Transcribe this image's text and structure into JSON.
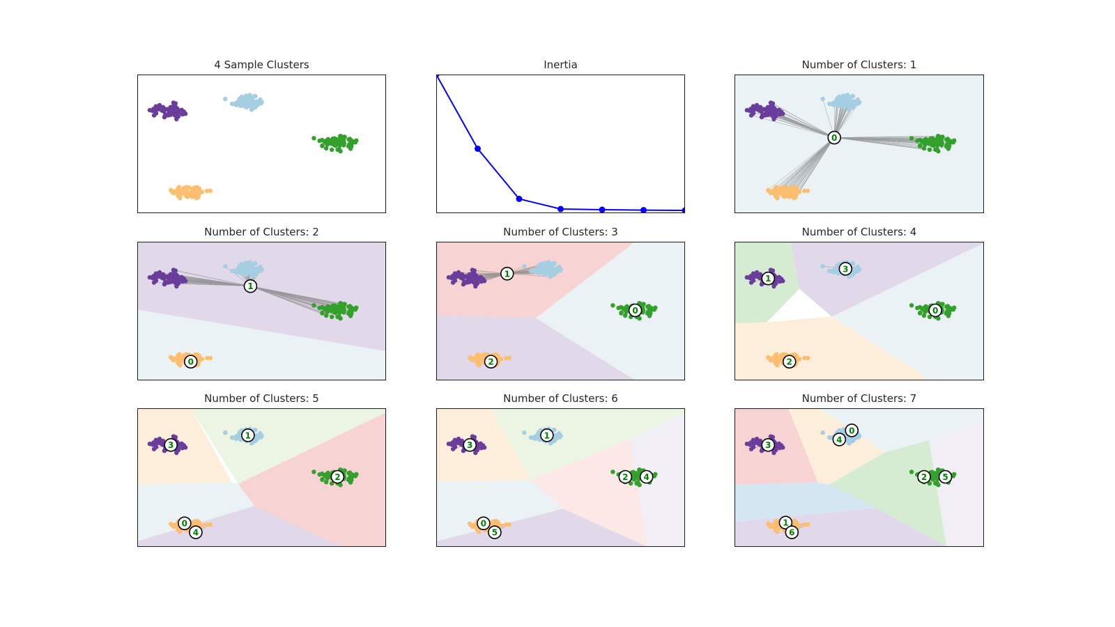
{
  "colors": {
    "blobs": [
      "#6a3d9a",
      "#a6cee3",
      "#33a02c",
      "#fdbf6f"
    ],
    "centroid_label": "#008000",
    "inertia_line": "#0000ff",
    "link_line": "#808080",
    "regions": [
      "#eaf2f6",
      "#e1d8ea",
      "#f7d3d3",
      "#fdeddb",
      "#ecf5e3",
      "#fde8e8",
      "#d4e6f1",
      "#d5ebd2",
      "#f2eef6"
    ]
  },
  "chart_data": [
    {
      "type": "scatter",
      "title": "4 Sample Clusters",
      "xlim": [
        0,
        100
      ],
      "ylim": [
        0,
        100
      ],
      "clusters": [
        {
          "name": "purple",
          "center": [
            12.5,
            74
          ],
          "spread": [
            6,
            4.5
          ],
          "count": 70
        },
        {
          "name": "light-blue",
          "center": [
            44.5,
            80.5
          ],
          "spread": [
            6,
            4.5
          ],
          "count": 70
        },
        {
          "name": "green",
          "center": [
            80,
            51
          ],
          "spread": [
            6,
            4.5
          ],
          "count": 70
        },
        {
          "name": "orange",
          "center": [
            20.5,
            15.5
          ],
          "spread": [
            6,
            4.5
          ],
          "count": 70
        }
      ],
      "centroids": []
    },
    {
      "type": "line",
      "title": "Inertia",
      "x": [
        1,
        2,
        3,
        4,
        5,
        6,
        7
      ],
      "y": [
        100,
        46.5,
        10.3,
        3.0,
        2.5,
        2.2,
        2.0
      ],
      "xlim": [
        1,
        7
      ],
      "ylim": [
        0,
        100
      ]
    },
    {
      "type": "scatter",
      "title": "Number of Clusters: 1",
      "regions": [
        {
          "color_index": 0,
          "polygon": [
            [
              0,
              0
            ],
            [
              100,
              0
            ],
            [
              100,
              100
            ],
            [
              0,
              100
            ]
          ]
        }
      ],
      "centroids": [
        {
          "label": "0",
          "pos": [
            40,
            54.5
          ],
          "members": [
            0,
            1,
            2,
            3
          ]
        }
      ]
    },
    {
      "type": "scatter",
      "title": "Number of Clusters: 2",
      "regions": [
        {
          "color_index": 1,
          "polygon": [
            [
              0,
              100
            ],
            [
              100,
              100
            ],
            [
              100,
              21
            ],
            [
              0,
              51
            ]
          ]
        },
        {
          "color_index": 0,
          "polygon": [
            [
              0,
              51
            ],
            [
              100,
              21
            ],
            [
              100,
              0
            ],
            [
              0,
              0
            ]
          ]
        }
      ],
      "centroids": [
        {
          "label": "0",
          "pos": [
            21.5,
            13.5
          ],
          "members": [
            3
          ]
        },
        {
          "label": "1",
          "pos": [
            45.5,
            68
          ],
          "members": [
            0,
            1,
            2
          ]
        }
      ]
    },
    {
      "type": "scatter",
      "title": "Number of Clusters: 3",
      "regions": [
        {
          "color_index": 2,
          "polygon": [
            [
              0,
              100
            ],
            [
              80,
              100
            ],
            [
              40,
              45
            ],
            [
              0,
              47
            ]
          ]
        },
        {
          "color_index": 0,
          "polygon": [
            [
              80,
              100
            ],
            [
              100,
              100
            ],
            [
              100,
              0
            ],
            [
              80,
              0
            ],
            [
              40,
              45
            ]
          ]
        },
        {
          "color_index": 1,
          "polygon": [
            [
              0,
              47
            ],
            [
              40,
              45
            ],
            [
              80,
              0
            ],
            [
              0,
              0
            ]
          ]
        }
      ],
      "centroids": [
        {
          "label": "0",
          "pos": [
            80,
            50.5
          ],
          "members": [
            2
          ]
        },
        {
          "label": "1",
          "pos": [
            28.5,
            77
          ],
          "members": [
            0,
            1
          ]
        },
        {
          "label": "2",
          "pos": [
            22,
            13.5
          ],
          "members": [
            3
          ]
        }
      ]
    },
    {
      "type": "scatter",
      "title": "Number of Clusters: 4",
      "regions": [
        {
          "color_index": 7,
          "polygon": [
            [
              0,
              100
            ],
            [
              22.5,
              100
            ],
            [
              26,
              66
            ],
            [
              13,
              42
            ],
            [
              0,
              41
            ]
          ]
        },
        {
          "color_index": 1,
          "polygon": [
            [
              22.5,
              100
            ],
            [
              100,
              100
            ],
            [
              100,
              99
            ],
            [
              39,
              46
            ],
            [
              26,
              66
            ]
          ]
        },
        {
          "color_index": 3,
          "polygon": [
            [
              0,
              41
            ],
            [
              13,
              42
            ],
            [
              39,
              46
            ],
            [
              79,
              0
            ],
            [
              0,
              0
            ]
          ]
        },
        {
          "color_index": 0,
          "polygon": [
            [
              100,
              99
            ],
            [
              100,
              0
            ],
            [
              79,
              0
            ],
            [
              39,
              46
            ]
          ]
        }
      ],
      "centroids": [
        {
          "label": "0",
          "pos": [
            80.5,
            50.5
          ],
          "members": [
            2
          ]
        },
        {
          "label": "1",
          "pos": [
            13.5,
            73.5
          ],
          "members": [
            0
          ]
        },
        {
          "label": "2",
          "pos": [
            22,
            13.5
          ],
          "members": [
            3
          ]
        },
        {
          "label": "3",
          "pos": [
            44.5,
            80.5
          ],
          "members": [
            1
          ]
        }
      ]
    },
    {
      "type": "scatter",
      "title": "Number of Clusters: 5",
      "regions": [
        {
          "color_index": 3,
          "polygon": [
            [
              0,
              100
            ],
            [
              21.5,
              100
            ],
            [
              38,
              46.5
            ],
            [
              0,
              45
            ]
          ]
        },
        {
          "color_index": 4,
          "polygon": [
            [
              21.5,
              100
            ],
            [
              100,
              100
            ],
            [
              100,
              97
            ],
            [
              40.5,
              45.5
            ]
          ]
        },
        {
          "color_index": 2,
          "polygon": [
            [
              100,
              97
            ],
            [
              100,
              0
            ],
            [
              82,
              0
            ],
            [
              47,
              29.5
            ],
            [
              40.5,
              45.5
            ]
          ]
        },
        {
          "color_index": 0,
          "polygon": [
            [
              0,
              45
            ],
            [
              38,
              46.5
            ],
            [
              40.5,
              45.5
            ],
            [
              47,
              29.5
            ],
            [
              0,
              4
            ]
          ]
        },
        {
          "color_index": 1,
          "polygon": [
            [
              0,
              4
            ],
            [
              47,
              29.5
            ],
            [
              82,
              0
            ],
            [
              0,
              0
            ]
          ]
        }
      ],
      "centroids": [
        {
          "label": "0",
          "pos": [
            19,
            17
          ],
          "members": [
            3
          ]
        },
        {
          "label": "1",
          "pos": [
            44.5,
            80.5
          ],
          "members": [
            1
          ]
        },
        {
          "label": "2",
          "pos": [
            80.5,
            50.5
          ],
          "members": [
            2
          ]
        },
        {
          "label": "3",
          "pos": [
            13.5,
            73.5
          ],
          "members": [
            0
          ]
        },
        {
          "label": "4",
          "pos": [
            23.5,
            10.5
          ],
          "members": [
            3
          ]
        }
      ]
    },
    {
      "type": "scatter",
      "title": "Number of Clusters: 6",
      "regions": [
        {
          "color_index": 3,
          "polygon": [
            [
              0,
              100
            ],
            [
              21.5,
              100
            ],
            [
              38,
              48.5
            ],
            [
              0,
              47
            ]
          ]
        },
        {
          "color_index": 4,
          "polygon": [
            [
              21.5,
              100
            ],
            [
              100,
              100
            ],
            [
              100,
              97
            ],
            [
              78,
              77.5
            ],
            [
              38,
              48.5
            ]
          ]
        },
        {
          "color_index": 5,
          "polygon": [
            [
              78,
              77.5
            ],
            [
              85,
              0
            ],
            [
              51,
              27.5
            ],
            [
              38,
              48.5
            ]
          ]
        },
        {
          "color_index": 8,
          "polygon": [
            [
              100,
              97
            ],
            [
              100,
              0
            ],
            [
              85,
              0
            ],
            [
              78,
              77.5
            ]
          ]
        },
        {
          "color_index": 0,
          "polygon": [
            [
              0,
              47
            ],
            [
              38,
              48.5
            ],
            [
              51,
              27.5
            ],
            [
              0,
              4
            ]
          ]
        },
        {
          "color_index": 1,
          "polygon": [
            [
              0,
              4
            ],
            [
              51,
              27.5
            ],
            [
              85,
              0
            ],
            [
              0,
              0
            ]
          ]
        }
      ],
      "centroids": [
        {
          "label": "0",
          "pos": [
            19,
            17
          ],
          "members": [
            3
          ]
        },
        {
          "label": "1",
          "pos": [
            44.5,
            80.5
          ],
          "members": [
            1
          ]
        },
        {
          "label": "2",
          "pos": [
            76,
            50.5
          ],
          "members": [
            2
          ]
        },
        {
          "label": "3",
          "pos": [
            13.5,
            73.5
          ],
          "members": [
            0
          ]
        },
        {
          "label": "4",
          "pos": [
            84.5,
            50.5
          ],
          "members": [
            2
          ]
        },
        {
          "label": "5",
          "pos": [
            23.5,
            10.5
          ],
          "members": [
            3
          ]
        }
      ]
    },
    {
      "type": "scatter",
      "title": "Number of Clusters: 7",
      "regions": [
        {
          "color_index": 2,
          "polygon": [
            [
              0,
              100
            ],
            [
              21.5,
              100
            ],
            [
              33.5,
              46.5
            ],
            [
              0,
              45
            ]
          ]
        },
        {
          "color_index": 3,
          "polygon": [
            [
              21.5,
              100
            ],
            [
              34,
              100
            ],
            [
              60,
              68
            ],
            [
              38,
              45
            ],
            [
              33.5,
              46.5
            ]
          ]
        },
        {
          "color_index": 0,
          "polygon": [
            [
              34,
              100
            ],
            [
              100,
              100
            ],
            [
              100,
              92
            ],
            [
              78,
              77
            ],
            [
              60,
              68
            ]
          ]
        },
        {
          "color_index": 7,
          "polygon": [
            [
              60,
              68
            ],
            [
              78,
              77
            ],
            [
              85,
              0
            ],
            [
              57,
              28
            ],
            [
              38,
              45
            ]
          ]
        },
        {
          "color_index": 8,
          "polygon": [
            [
              100,
              92
            ],
            [
              100,
              0
            ],
            [
              85,
              0
            ],
            [
              78,
              77
            ]
          ]
        },
        {
          "color_index": 6,
          "polygon": [
            [
              0,
              45
            ],
            [
              33.5,
              46.5
            ],
            [
              38,
              45
            ],
            [
              57,
              28
            ],
            [
              0,
              18
            ]
          ]
        },
        {
          "color_index": 1,
          "polygon": [
            [
              0,
              18
            ],
            [
              57,
              28
            ],
            [
              85,
              0
            ],
            [
              0,
              0
            ]
          ]
        }
      ],
      "centroids": [
        {
          "label": "0",
          "pos": [
            47,
            84
          ],
          "members": [
            1
          ]
        },
        {
          "label": "1",
          "pos": [
            20.5,
            17.5
          ],
          "members": [
            3
          ]
        },
        {
          "label": "2",
          "pos": [
            76,
            50.5
          ],
          "members": [
            2
          ]
        },
        {
          "label": "3",
          "pos": [
            13.5,
            73.5
          ],
          "members": [
            0
          ]
        },
        {
          "label": "4",
          "pos": [
            42,
            77.5
          ],
          "members": [
            1
          ]
        },
        {
          "label": "5",
          "pos": [
            84.5,
            50.5
          ],
          "members": [
            2
          ]
        },
        {
          "label": "6",
          "pos": [
            23,
            10.5
          ],
          "members": [
            3
          ]
        }
      ]
    }
  ]
}
